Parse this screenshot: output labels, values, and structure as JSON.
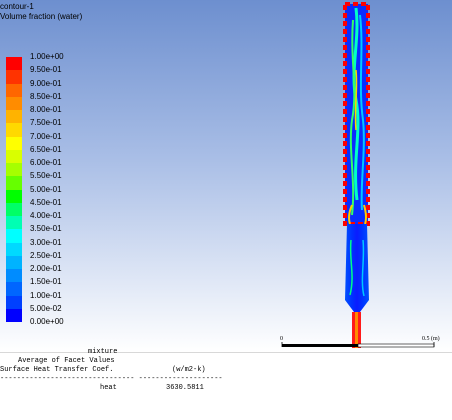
{
  "contour": {
    "name": "contour-1",
    "field": "Volume fraction (water)"
  },
  "legend": {
    "labels": [
      "1.00e+00",
      "9.50e-01",
      "9.00e-01",
      "8.50e-01",
      "8.00e-01",
      "7.50e-01",
      "7.00e-01",
      "6.50e-01",
      "6.00e-01",
      "5.50e-01",
      "5.00e-01",
      "4.50e-01",
      "4.00e-01",
      "3.50e-01",
      "3.00e-01",
      "2.50e-01",
      "2.00e-01",
      "1.50e-01",
      "1.00e-01",
      "5.00e-02",
      "0.00e+00"
    ],
    "colors": [
      "#ff0000",
      "#ff3300",
      "#ff6600",
      "#ff8c00",
      "#ffb300",
      "#ffd900",
      "#ffff00",
      "#d9ff00",
      "#a6ff00",
      "#66ff00",
      "#00ff00",
      "#00ff66",
      "#00ffb3",
      "#00ffff",
      "#00d9ff",
      "#00b3ff",
      "#008cff",
      "#0066ff",
      "#0040ff",
      "#0000ff"
    ]
  },
  "scale": {
    "start_label": "0",
    "end_label": "0.5 (m)"
  },
  "console": {
    "line1": "mixture",
    "line2": "Average of Facet Values",
    "line3_label": "Surface Heat Transfer Coef.",
    "line3_unit": "(w/m2-k)",
    "separator": "-------------------------------- --------------------",
    "row_label": "heat",
    "row_value": "3630.5811"
  }
}
